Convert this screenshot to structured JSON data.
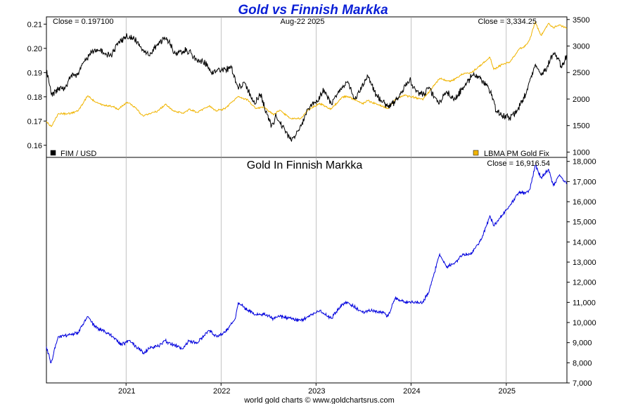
{
  "title": "Gold vs Finnish Markka",
  "footer": "world gold charts © www.goldchartsrus.com",
  "top_panel": {
    "date_label": "Aug-22  2025",
    "close_left": "Close = 0.197100",
    "close_right": "Close = 3,334.25",
    "legend_left": "FIM / USD",
    "legend_right": "LBMA PM Gold Fix",
    "left_ticks": [
      "0.21",
      "0.20",
      "0.19",
      "0.18",
      "0.17",
      "0.16"
    ],
    "right_ticks": [
      "3500",
      "3000",
      "2500",
      "2000",
      "1500",
      "1000"
    ]
  },
  "bottom_panel": {
    "title": "Gold In Finnish Markka",
    "close": "Close = 16,916.54",
    "right_ticks": [
      "18,000",
      "17,000",
      "16,000",
      "15,000",
      "14,000",
      "13,000",
      "12,000",
      "11,000",
      "10,000",
      "9,000",
      "8,000",
      "7,000"
    ]
  },
  "x_ticks": [
    "2021",
    "2022",
    "2023",
    "2024",
    "2025"
  ],
  "colors": {
    "fim_usd": "#000000",
    "gold_usd": "#f0b400",
    "gold_fim": "#0000dd",
    "title": "#0a1fd6"
  },
  "chart_data": [
    {
      "type": "line",
      "x_axis": "date",
      "xlim": [
        "2020-03-01",
        "2025-08-22"
      ],
      "series": [
        {
          "name": "FIM / USD",
          "axis": "left",
          "ylim": [
            0.155,
            0.213
          ],
          "points": [
            [
              "2020-03-01",
              0.191
            ],
            [
              "2020-03-20",
              0.181
            ],
            [
              "2020-04-15",
              0.183
            ],
            [
              "2020-05-10",
              0.183
            ],
            [
              "2020-06-01",
              0.188
            ],
            [
              "2020-07-01",
              0.19
            ],
            [
              "2020-07-20",
              0.194
            ],
            [
              "2020-08-15",
              0.198
            ],
            [
              "2020-09-15",
              0.199
            ],
            [
              "2020-10-15",
              0.198
            ],
            [
              "2020-11-05",
              0.197
            ],
            [
              "2020-12-01",
              0.202
            ],
            [
              "2021-01-05",
              0.205
            ],
            [
              "2021-02-01",
              0.204
            ],
            [
              "2021-03-01",
              0.2
            ],
            [
              "2021-03-31",
              0.197
            ],
            [
              "2021-04-20",
              0.2
            ],
            [
              "2021-05-25",
              0.204
            ],
            [
              "2021-06-15",
              0.203
            ],
            [
              "2021-07-05",
              0.198
            ],
            [
              "2021-08-01",
              0.199
            ],
            [
              "2021-09-01",
              0.199
            ],
            [
              "2021-10-01",
              0.195
            ],
            [
              "2021-11-01",
              0.194
            ],
            [
              "2021-11-25",
              0.19
            ],
            [
              "2022-01-01",
              0.191
            ],
            [
              "2022-02-10",
              0.192
            ],
            [
              "2022-03-07",
              0.184
            ],
            [
              "2022-04-01",
              0.186
            ],
            [
              "2022-05-10",
              0.177
            ],
            [
              "2022-06-01",
              0.181
            ],
            [
              "2022-07-14",
              0.168
            ],
            [
              "2022-08-01",
              0.172
            ],
            [
              "2022-08-25",
              0.168
            ],
            [
              "2022-09-27",
              0.162
            ],
            [
              "2022-10-15",
              0.164
            ],
            [
              "2022-11-05",
              0.168
            ],
            [
              "2022-11-30",
              0.175
            ],
            [
              "2023-01-05",
              0.178
            ],
            [
              "2023-02-01",
              0.183
            ],
            [
              "2023-03-01",
              0.177
            ],
            [
              "2023-04-01",
              0.183
            ],
            [
              "2023-05-01",
              0.186
            ],
            [
              "2023-05-31",
              0.179
            ],
            [
              "2023-07-17",
              0.189
            ],
            [
              "2023-08-20",
              0.181
            ],
            [
              "2023-10-03",
              0.176
            ],
            [
              "2023-11-01",
              0.178
            ],
            [
              "2023-12-27",
              0.187
            ],
            [
              "2024-01-20",
              0.182
            ],
            [
              "2024-02-20",
              0.181
            ],
            [
              "2024-03-10",
              0.184
            ],
            [
              "2024-04-16",
              0.177
            ],
            [
              "2024-05-15",
              0.182
            ],
            [
              "2024-06-15",
              0.179
            ],
            [
              "2024-07-15",
              0.183
            ],
            [
              "2024-08-25",
              0.189
            ],
            [
              "2024-09-25",
              0.188
            ],
            [
              "2024-11-01",
              0.182
            ],
            [
              "2024-11-25",
              0.174
            ],
            [
              "2025-01-13",
              0.171
            ],
            [
              "2025-02-15",
              0.175
            ],
            [
              "2025-03-20",
              0.182
            ],
            [
              "2025-04-21",
              0.193
            ],
            [
              "2025-05-15",
              0.189
            ],
            [
              "2025-06-01",
              0.191
            ],
            [
              "2025-07-01",
              0.198
            ],
            [
              "2025-07-20",
              0.196
            ],
            [
              "2025-08-01",
              0.192
            ],
            [
              "2025-08-22",
              0.1971
            ]
          ]
        },
        {
          "name": "LBMA PM Gold Fix",
          "axis": "right",
          "ylim": [
            900,
            3550
          ],
          "points": [
            [
              "2020-03-01",
              1580
            ],
            [
              "2020-03-19",
              1480
            ],
            [
              "2020-04-15",
              1720
            ],
            [
              "2020-06-01",
              1730
            ],
            [
              "2020-07-01",
              1780
            ],
            [
              "2020-08-06",
              2060
            ],
            [
              "2020-09-01",
              1960
            ],
            [
              "2020-10-01",
              1890
            ],
            [
              "2020-11-10",
              1860
            ],
            [
              "2020-12-01",
              1810
            ],
            [
              "2021-01-06",
              1940
            ],
            [
              "2021-02-01",
              1860
            ],
            [
              "2021-03-08",
              1680
            ],
            [
              "2021-04-01",
              1730
            ],
            [
              "2021-05-01",
              1770
            ],
            [
              "2021-06-01",
              1900
            ],
            [
              "2021-07-01",
              1780
            ],
            [
              "2021-08-09",
              1730
            ],
            [
              "2021-09-01",
              1810
            ],
            [
              "2021-10-01",
              1750
            ],
            [
              "2021-11-16",
              1870
            ],
            [
              "2021-12-15",
              1780
            ],
            [
              "2022-01-15",
              1820
            ],
            [
              "2022-03-08",
              2050
            ],
            [
              "2022-04-15",
              1980
            ],
            [
              "2022-05-15",
              1820
            ],
            [
              "2022-06-15",
              1850
            ],
            [
              "2022-07-21",
              1700
            ],
            [
              "2022-08-15",
              1790
            ],
            [
              "2022-09-27",
              1630
            ],
            [
              "2022-11-03",
              1630
            ],
            [
              "2022-12-01",
              1790
            ],
            [
              "2023-01-15",
              1920
            ],
            [
              "2023-02-28",
              1810
            ],
            [
              "2023-04-13",
              2040
            ],
            [
              "2023-05-04",
              2050
            ],
            [
              "2023-06-28",
              1910
            ],
            [
              "2023-07-20",
              1970
            ],
            [
              "2023-10-05",
              1820
            ],
            [
              "2023-11-01",
              1990
            ],
            [
              "2023-12-04",
              2070
            ],
            [
              "2024-01-15",
              2030
            ],
            [
              "2024-02-14",
              1990
            ],
            [
              "2024-03-15",
              2170
            ],
            [
              "2024-04-20",
              2390
            ],
            [
              "2024-06-01",
              2330
            ],
            [
              "2024-07-17",
              2470
            ],
            [
              "2024-08-20",
              2500
            ],
            [
              "2024-09-30",
              2660
            ],
            [
              "2024-10-30",
              2790
            ],
            [
              "2024-11-14",
              2560
            ],
            [
              "2024-12-15",
              2650
            ],
            [
              "2025-01-15",
              2700
            ],
            [
              "2025-02-20",
              2950
            ],
            [
              "2025-03-15",
              3000
            ],
            [
              "2025-04-01",
              3120
            ],
            [
              "2025-04-22",
              3450
            ],
            [
              "2025-05-15",
              3200
            ],
            [
              "2025-06-13",
              3430
            ],
            [
              "2025-07-01",
              3340
            ],
            [
              "2025-07-23",
              3400
            ],
            [
              "2025-08-22",
              3334.25
            ]
          ]
        }
      ],
      "ylim_left": [
        0.155,
        0.213
      ],
      "ylim_right": [
        900,
        3550
      ],
      "legend": [
        "FIM / USD",
        "LBMA PM Gold Fix"
      ]
    },
    {
      "type": "line",
      "title": "Gold In Finnish Markka",
      "x_axis": "date",
      "xlim": [
        "2020-03-01",
        "2025-08-22"
      ],
      "ylim": [
        7000,
        18200
      ],
      "series": [
        {
          "points": [
            [
              "2020-03-01",
              8800
            ],
            [
              "2020-03-19",
              8000
            ],
            [
              "2020-04-15",
              9300
            ],
            [
              "2020-06-01",
              9400
            ],
            [
              "2020-07-01",
              9500
            ],
            [
              "2020-08-06",
              10300
            ],
            [
              "2020-09-01",
              9800
            ],
            [
              "2020-10-01",
              9600
            ],
            [
              "2020-11-10",
              9300
            ],
            [
              "2020-12-15",
              8900
            ],
            [
              "2021-01-10",
              9100
            ],
            [
              "2021-02-01",
              8900
            ],
            [
              "2021-03-08",
              8500
            ],
            [
              "2021-04-01",
              8700
            ],
            [
              "2021-05-01",
              8800
            ],
            [
              "2021-06-01",
              9100
            ],
            [
              "2021-07-01",
              8900
            ],
            [
              "2021-08-09",
              8700
            ],
            [
              "2021-09-01",
              9100
            ],
            [
              "2021-10-01",
              9000
            ],
            [
              "2021-11-16",
              9600
            ],
            [
              "2021-12-15",
              9300
            ],
            [
              "2022-01-15",
              9500
            ],
            [
              "2022-02-25",
              10200
            ],
            [
              "2022-03-08",
              11000
            ],
            [
              "2022-04-15",
              10600
            ],
            [
              "2022-05-15",
              10400
            ],
            [
              "2022-06-15",
              10400
            ],
            [
              "2022-07-21",
              10200
            ],
            [
              "2022-08-15",
              10300
            ],
            [
              "2022-09-27",
              10200
            ],
            [
              "2022-11-03",
              10100
            ],
            [
              "2022-12-01",
              10300
            ],
            [
              "2023-01-15",
              10600
            ],
            [
              "2023-02-28",
              10200
            ],
            [
              "2023-04-13",
              10900
            ],
            [
              "2023-05-04",
              11000
            ],
            [
              "2023-06-28",
              10500
            ],
            [
              "2023-07-20",
              10600
            ],
            [
              "2023-09-15",
              10500
            ],
            [
              "2023-10-05",
              10300
            ],
            [
              "2023-11-01",
              11200
            ],
            [
              "2023-12-04",
              11000
            ],
            [
              "2024-01-15",
              11000
            ],
            [
              "2024-02-14",
              11000
            ],
            [
              "2024-03-10",
              11500
            ],
            [
              "2024-04-20",
              13400
            ],
            [
              "2024-05-15",
              12800
            ],
            [
              "2024-06-15",
              12900
            ],
            [
              "2024-07-17",
              13400
            ],
            [
              "2024-08-20",
              13400
            ],
            [
              "2024-09-30",
              14200
            ],
            [
              "2024-10-30",
              15300
            ],
            [
              "2024-11-14",
              14800
            ],
            [
              "2024-12-15",
              15300
            ],
            [
              "2025-01-15",
              15800
            ],
            [
              "2025-02-20",
              16500
            ],
            [
              "2025-03-15",
              16400
            ],
            [
              "2025-04-01",
              16600
            ],
            [
              "2025-04-22",
              17800
            ],
            [
              "2025-05-15",
              17200
            ],
            [
              "2025-06-13",
              17600
            ],
            [
              "2025-07-01",
              16800
            ],
            [
              "2025-07-23",
              17300
            ],
            [
              "2025-08-22",
              16916.54
            ]
          ]
        }
      ]
    }
  ]
}
